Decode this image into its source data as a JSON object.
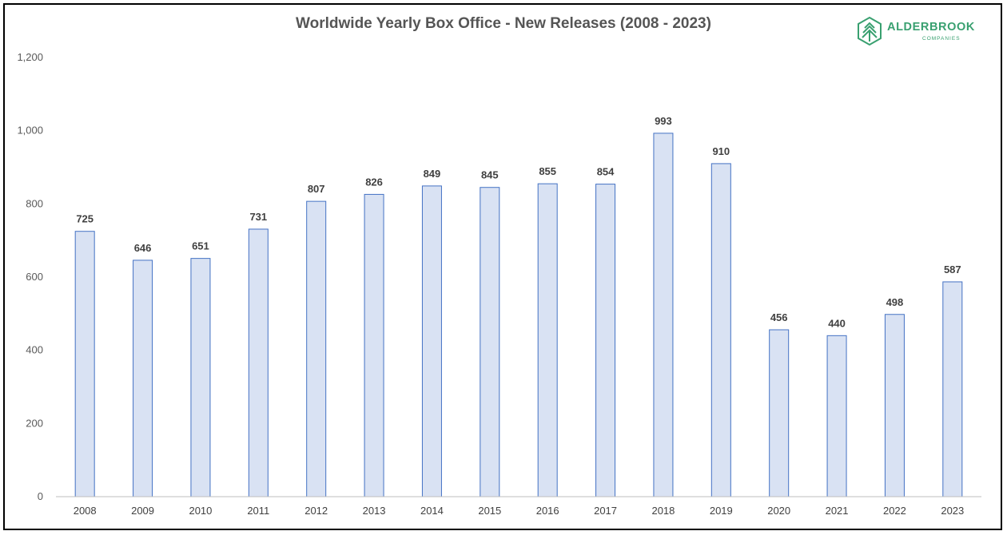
{
  "chart_data": {
    "type": "bar",
    "title": "Worldwide Yearly Box Office - New Releases (2008 - 2023)",
    "xlabel": "",
    "ylabel": "",
    "categories": [
      "2008",
      "2009",
      "2010",
      "2011",
      "2012",
      "2013",
      "2014",
      "2015",
      "2016",
      "2017",
      "2018",
      "2019",
      "2020",
      "2021",
      "2022",
      "2023"
    ],
    "values": [
      725,
      646,
      651,
      731,
      807,
      826,
      849,
      845,
      855,
      854,
      993,
      910,
      456,
      440,
      498,
      587
    ],
    "data_labels": [
      "725",
      "646",
      "651",
      "731",
      "807",
      "826",
      "849",
      "845",
      "855",
      "854",
      "993",
      "910",
      "456",
      "440",
      "498",
      "587"
    ],
    "ylim": [
      0,
      1200
    ],
    "yticks": [
      0,
      200,
      400,
      600,
      800,
      1000,
      1200
    ],
    "ytick_labels": [
      "0",
      "200",
      "400",
      "600",
      "800",
      "1,000",
      "1,200"
    ],
    "grid": false,
    "legend": "none",
    "colors": {
      "bar_fill": "#d9e2f3",
      "bar_stroke": "#4472c4",
      "axis": "#bfbfbf"
    }
  },
  "logo": {
    "name": "ALDERBROOK",
    "tagline": "COMPANIES",
    "color": "#39a070",
    "icon": "tree-hexagon-icon"
  }
}
